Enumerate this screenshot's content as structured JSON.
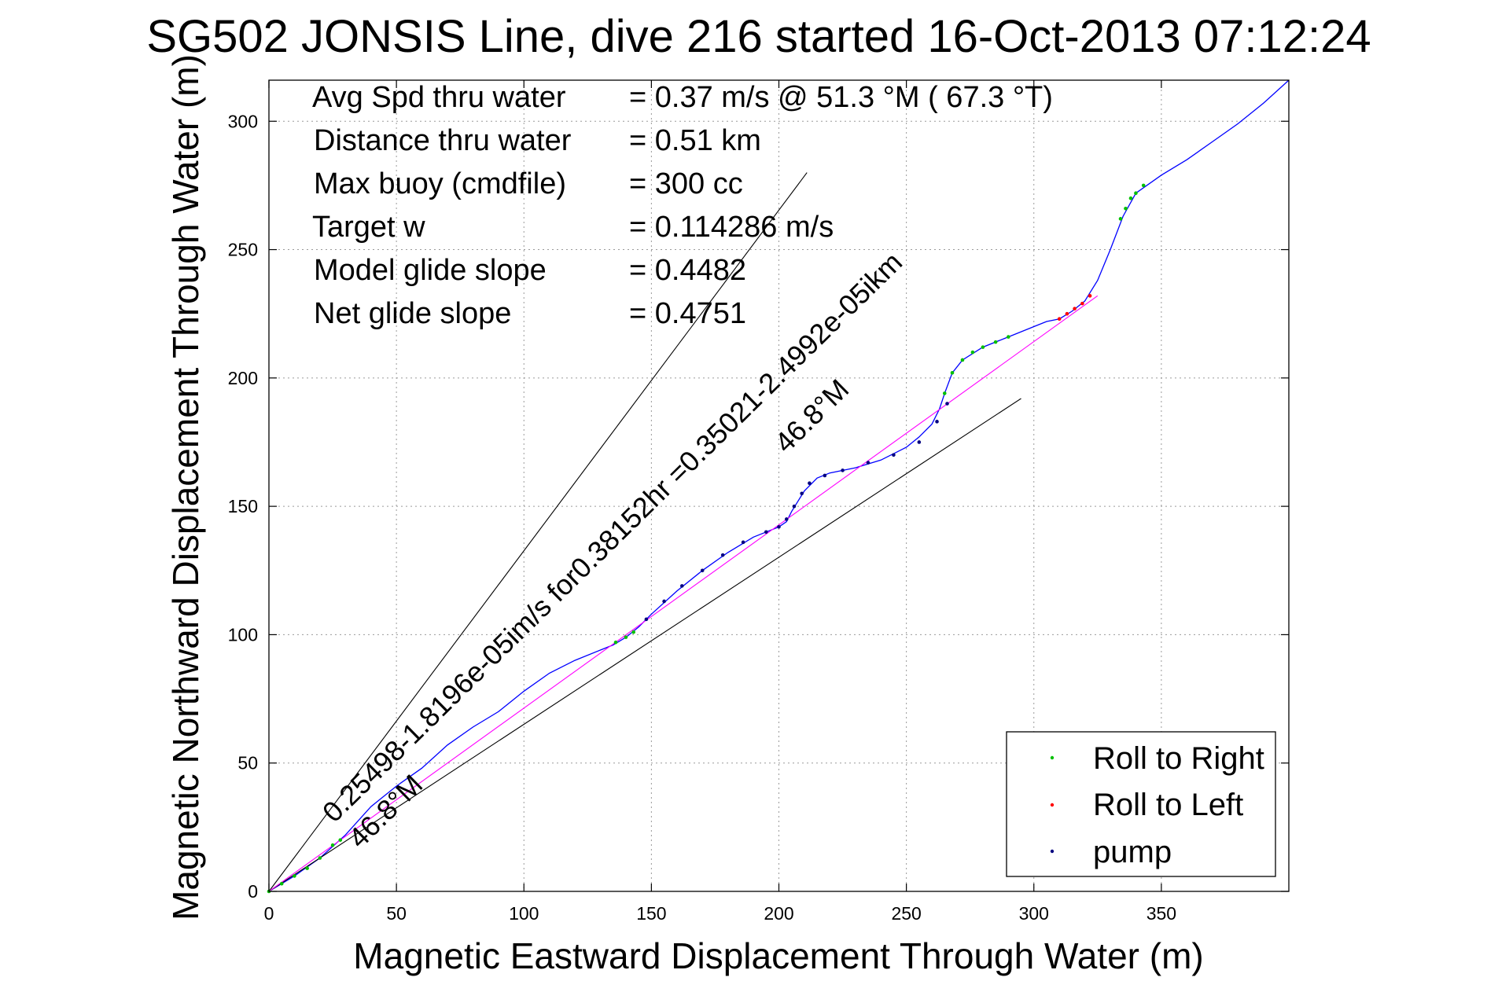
{
  "chart_data": {
    "type": "line",
    "title": "SG502 JONSIS Line, dive 216 started 16-Oct-2013 07:12:24",
    "xlabel": "Magnetic Eastward Displacement Through Water (m)",
    "ylabel": "Magnetic Northward Displacement Through Water (m)",
    "xlim": [
      0,
      400
    ],
    "ylim": [
      0,
      316
    ],
    "xticks": [
      "0",
      "50",
      "100",
      "150",
      "200",
      "250",
      "300",
      "350"
    ],
    "yticks": [
      "0",
      "50",
      "100",
      "150",
      "200",
      "250",
      "300"
    ],
    "grid": true,
    "legend": {
      "placement": "bottom-right",
      "entries": [
        {
          "label": "Roll to Right",
          "color": "#00c000"
        },
        {
          "label": "Roll to Left",
          "color": "#ff0000"
        },
        {
          "label": "pump",
          "color": "#000080"
        }
      ]
    },
    "info": [
      {
        "label": "Avg Spd thru water",
        "value": "=  0.37 m/s @  51.3 °M ( 67.3 °T)"
      },
      {
        "label": "Distance thru water",
        "value": "=  0.51 km"
      },
      {
        "label": "Max buoy (cmdfile)",
        "value": "= 300 cc"
      },
      {
        "label": "Target w",
        "value": "= 0.114286 m/s"
      },
      {
        "label": "Model glide slope",
        "value": "= 0.4482"
      },
      {
        "label": "Net glide slope",
        "value": "= 0.4751"
      }
    ],
    "annotations": {
      "lower_line1": "0.25498-1.8196e-05im/s for0.38152hr =0.35021-2.4992e-05ikm",
      "lower_line2": "46.8°M",
      "upper_label": "46.8°M"
    },
    "series": [
      {
        "name": "track",
        "color": "#0000ff",
        "x": [
          0,
          10,
          20,
          30,
          40,
          50,
          60,
          70,
          80,
          90,
          100,
          110,
          120,
          130,
          135,
          140,
          145,
          150,
          160,
          170,
          180,
          190,
          195,
          200,
          203,
          205,
          210,
          215,
          220,
          230,
          240,
          250,
          255,
          260,
          263,
          265,
          268,
          272,
          280,
          290,
          300,
          305,
          310,
          315,
          320,
          325,
          330,
          335,
          340,
          350,
          360,
          370,
          380,
          390,
          400
        ],
        "y": [
          0,
          6,
          13,
          22,
          33,
          41,
          48,
          57,
          64,
          70,
          78,
          85,
          90,
          94,
          96,
          99,
          103,
          108,
          117,
          125,
          132,
          138,
          140,
          142,
          144,
          148,
          156,
          161,
          163,
          165,
          168,
          173,
          177,
          182,
          188,
          194,
          202,
          207,
          212,
          216,
          220,
          222,
          223,
          226,
          230,
          238,
          250,
          263,
          272,
          279,
          285,
          292,
          299,
          307,
          316
        ]
      },
      {
        "name": "Roll to Right",
        "color": "#00c000",
        "x": [
          0,
          5,
          10,
          15,
          20,
          25,
          28,
          136,
          140,
          143,
          265,
          268,
          272,
          276,
          280,
          285,
          290,
          334,
          336,
          338,
          340,
          343
        ],
        "y": [
          0,
          3,
          6,
          9,
          13,
          18,
          20,
          97,
          99,
          101,
          194,
          202,
          207,
          210,
          212,
          214,
          216,
          262,
          266,
          270,
          272,
          275
        ]
      },
      {
        "name": "Roll to Left",
        "color": "#ff0000",
        "x": [
          310,
          313,
          316,
          319,
          322
        ],
        "y": [
          223,
          225,
          227,
          229,
          232
        ]
      },
      {
        "name": "pump",
        "color": "#000080",
        "x": [
          148,
          155,
          162,
          170,
          178,
          186,
          195,
          200,
          203,
          206,
          209,
          212,
          218,
          225,
          235,
          245,
          255,
          262,
          266
        ],
        "y": [
          106,
          113,
          119,
          125,
          131,
          136,
          140,
          142,
          145,
          150,
          155,
          159,
          162,
          164,
          167,
          170,
          175,
          183,
          190
        ]
      },
      {
        "name": "upper-bound",
        "color": "#000000",
        "x": [
          0,
          211
        ],
        "y": [
          0,
          280
        ]
      },
      {
        "name": "lower-bound",
        "color": "#000000",
        "x": [
          0,
          295
        ],
        "y": [
          0,
          192
        ]
      },
      {
        "name": "net-track",
        "color": "#ff00ff",
        "x": [
          0,
          325
        ],
        "y": [
          0,
          232
        ]
      }
    ]
  }
}
